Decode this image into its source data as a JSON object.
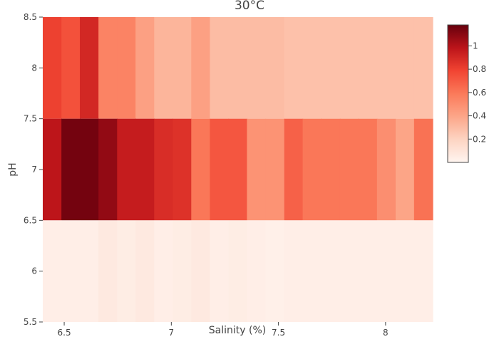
{
  "chart_data": {
    "type": "heatmap",
    "title": "30°C",
    "xlabel": "Salinity (%)",
    "ylabel": "pH",
    "x_ticks": [
      6.5,
      7,
      7.5,
      8
    ],
    "y_ticks": [
      5.5,
      6,
      6.5,
      7,
      7.5,
      8,
      8.5
    ],
    "xlim": [
      6.4,
      8.22
    ],
    "ylim": [
      5.5,
      8.5
    ],
    "colorbar_ticks": [
      0.2,
      0.4,
      0.6,
      0.8,
      1
    ],
    "colorscale": [
      "#fff5f0",
      "#fdd4c2",
      "#fca689",
      "#fb7a5a",
      "#f14432",
      "#bc141a",
      "#67000d"
    ],
    "zrange": [
      0.0,
      1.18
    ],
    "x_edges": [
      6.4,
      6.487,
      6.573,
      6.66,
      6.747,
      6.833,
      6.92,
      7.007,
      7.093,
      7.18,
      7.267,
      7.353,
      7.44,
      7.527,
      7.613,
      7.7,
      7.787,
      7.873,
      7.96,
      8.047,
      8.133,
      8.22
    ],
    "rows": [
      {
        "y": 8,
        "y_range": [
          7.5,
          8.5
        ],
        "values": [
          0.8,
          0.74,
          0.9,
          0.55,
          0.55,
          0.42,
          0.33,
          0.33,
          0.42,
          0.3,
          0.3,
          0.3,
          0.3,
          0.28,
          0.28,
          0.28,
          0.28,
          0.28,
          0.28,
          0.28,
          0.28
        ]
      },
      {
        "y": 7,
        "y_range": [
          6.5,
          7.5
        ],
        "values": [
          0.98,
          1.15,
          1.15,
          1.08,
          0.95,
          0.95,
          0.88,
          0.86,
          0.6,
          0.72,
          0.72,
          0.48,
          0.48,
          0.68,
          0.6,
          0.6,
          0.6,
          0.6,
          0.5,
          0.4,
          0.62
        ]
      },
      {
        "y": 6,
        "y_range": [
          5.5,
          6.5
        ],
        "values": [
          0.04,
          0.04,
          0.04,
          0.07,
          0.05,
          0.07,
          0.04,
          0.05,
          0.07,
          0.04,
          0.05,
          0.04,
          0.03,
          0.04,
          0.04,
          0.04,
          0.04,
          0.04,
          0.04,
          0.04,
          0.04
        ]
      }
    ]
  }
}
